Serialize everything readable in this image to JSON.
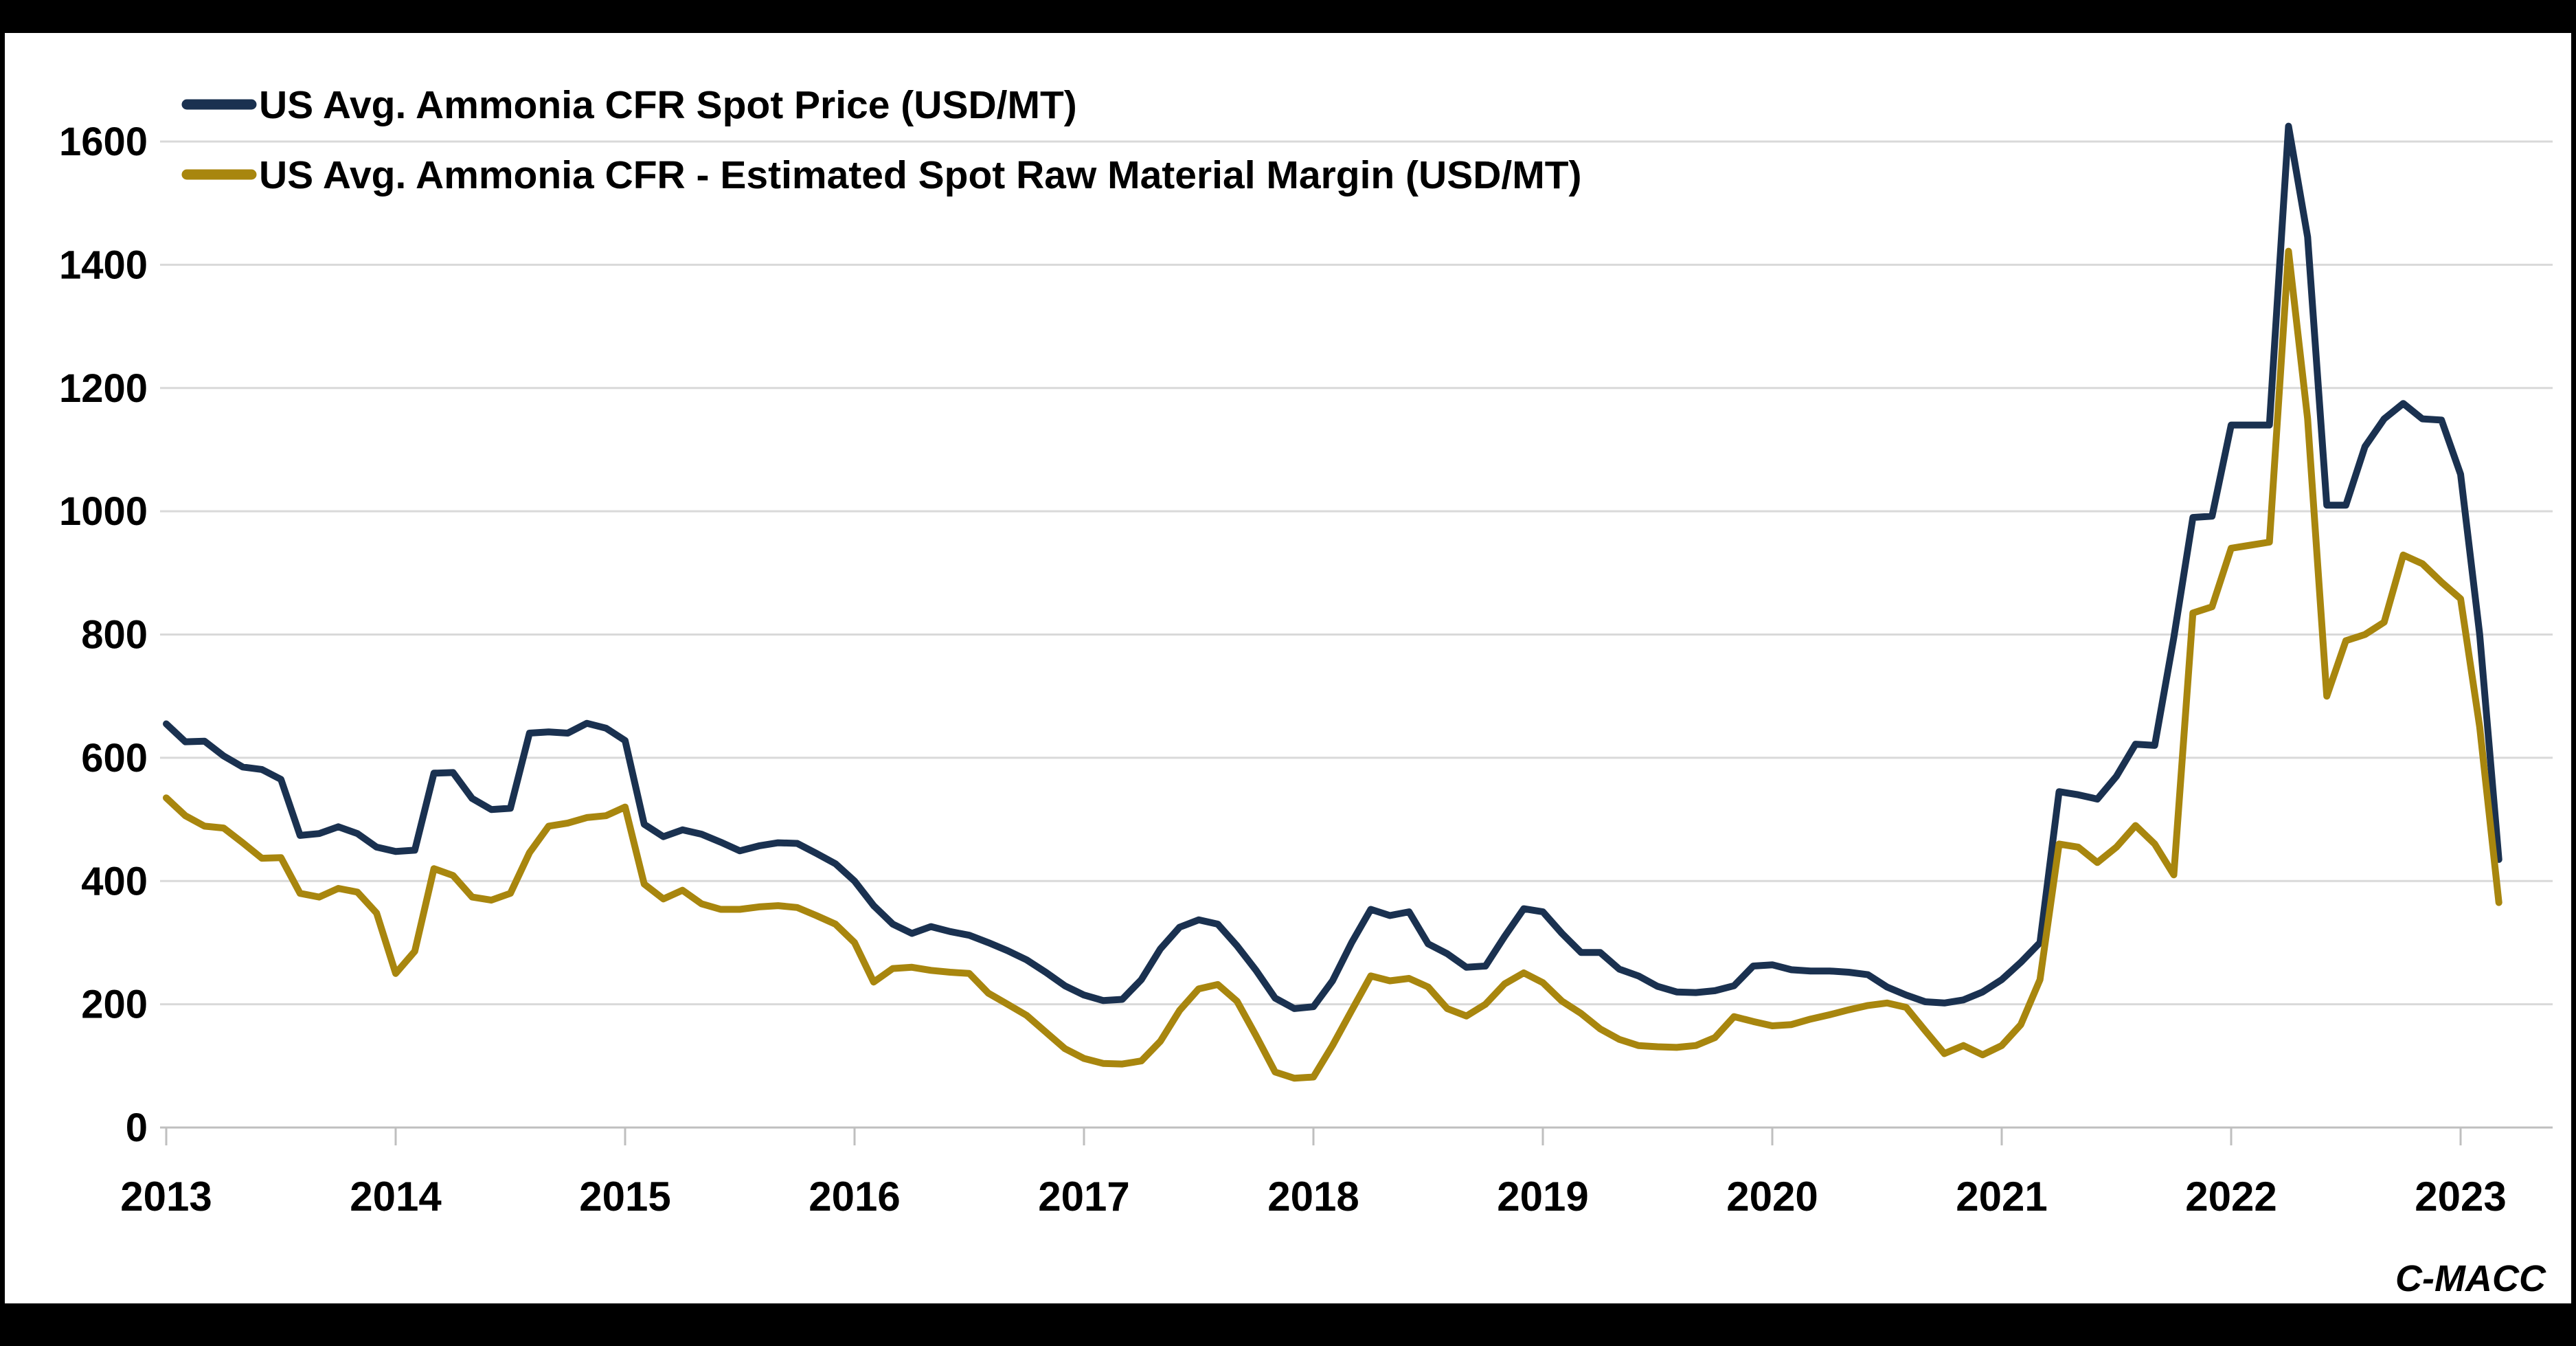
{
  "page": {
    "background": "#000000",
    "panel_background": "#FFFFFF"
  },
  "watermark": {
    "text": "C-MACC",
    "color": "#9C7A00"
  },
  "chart_data": {
    "type": "line",
    "title": "",
    "xlabel": "",
    "ylabel": "",
    "x_unit": "month",
    "x_start": "2013-01",
    "x_end": "2023-03",
    "x_tick_labels": [
      "2013",
      "2014",
      "2015",
      "2016",
      "2017",
      "2018",
      "2019",
      "2020",
      "2021",
      "2022",
      "2023"
    ],
    "y_ticks": [
      0,
      200,
      400,
      600,
      800,
      1000,
      1200,
      1400,
      1600
    ],
    "ylim": [
      0,
      1600
    ],
    "grid": true,
    "legend_position": "top-left",
    "colors": {
      "grid": "#D9D9D9",
      "axis": "#BFBFBF",
      "label": "#000000"
    },
    "series": [
      {
        "name": "US Avg. Ammonia CFR Spot Price (USD/MT)",
        "color": "#1A3150",
        "values": [
          655,
          626,
          627,
          603,
          585,
          581,
          565,
          474,
          477,
          488,
          477,
          455,
          448,
          450,
          575,
          576,
          534,
          516,
          518,
          640,
          642,
          640,
          656,
          648,
          628,
          492,
          472,
          483,
          476,
          463,
          449,
          457,
          462,
          461,
          445,
          428,
          400,
          360,
          330,
          315,
          326,
          318,
          312,
          300,
          287,
          272,
          252,
          230,
          215,
          206,
          208,
          240,
          290,
          325,
          337,
          330,
          295,
          255,
          210,
          193,
          196,
          238,
          300,
          354,
          344,
          350,
          298,
          282,
          260,
          262,
          310,
          355,
          350,
          315,
          284,
          284,
          257,
          246,
          229,
          220,
          219,
          222,
          230,
          262,
          264,
          256,
          254,
          254,
          252,
          248,
          228,
          215,
          204,
          202,
          207,
          220,
          240,
          268,
          300,
          545,
          540,
          533,
          570,
          622,
          620,
          795,
          990,
          992,
          1140,
          1140,
          1140,
          1625,
          1445,
          1010,
          1010,
          1105,
          1150,
          1175,
          1150,
          1148,
          1060,
          800,
          435
        ]
      },
      {
        "name": "US Avg. Ammonia CFR - Estimated Spot Raw Material Margin (USD/MT)",
        "color": "#A8860E",
        "values": [
          535,
          506,
          489,
          486,
          462,
          437,
          438,
          380,
          374,
          388,
          382,
          348,
          250,
          286,
          420,
          409,
          374,
          369,
          380,
          446,
          489,
          494,
          503,
          506,
          520,
          395,
          371,
          385,
          363,
          354,
          354,
          358,
          360,
          357,
          344,
          330,
          300,
          236,
          258,
          260,
          255,
          252,
          250,
          218,
          200,
          182,
          155,
          128,
          112,
          104,
          103,
          108,
          140,
          190,
          225,
          232,
          205,
          149,
          90,
          80,
          82,
          133,
          190,
          246,
          238,
          242,
          228,
          193,
          181,
          200,
          233,
          251,
          235,
          205,
          185,
          160,
          143,
          133,
          131,
          130,
          133,
          146,
          180,
          172,
          165,
          167,
          176,
          183,
          191,
          198,
          202,
          195,
          157,
          120,
          133,
          118,
          133,
          167,
          240,
          460,
          455,
          430,
          455,
          490,
          460,
          410,
          835,
          845,
          940,
          945,
          950,
          1422,
          1150,
          700,
          790,
          800,
          820,
          929,
          915,
          885,
          858,
          650,
          365
        ]
      }
    ]
  }
}
